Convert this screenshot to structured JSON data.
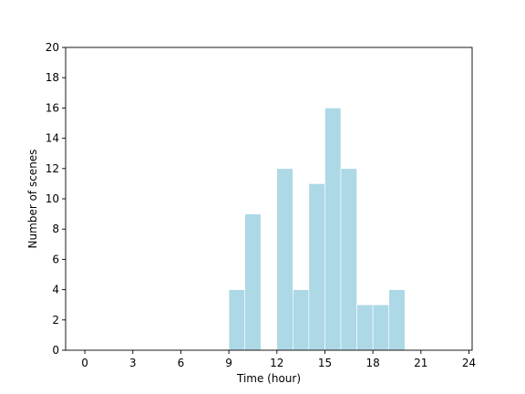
{
  "chart_data": {
    "type": "bar",
    "title": "",
    "xlabel": "Time (hour)",
    "ylabel": "Number of scenes",
    "xlim": [
      -1.2,
      24.2
    ],
    "ylim": [
      0,
      20
    ],
    "x_ticks": [
      0,
      3,
      6,
      9,
      12,
      15,
      18,
      21,
      24
    ],
    "y_ticks": [
      0,
      2,
      4,
      6,
      8,
      10,
      12,
      14,
      16,
      18,
      20
    ],
    "bin_width": 1,
    "bins": [
      {
        "start": 9,
        "count": 4
      },
      {
        "start": 10,
        "count": 9
      },
      {
        "start": 12,
        "count": 12
      },
      {
        "start": 13,
        "count": 4
      },
      {
        "start": 14,
        "count": 11
      },
      {
        "start": 15,
        "count": 16
      },
      {
        "start": 16,
        "count": 12
      },
      {
        "start": 17,
        "count": 3
      },
      {
        "start": 18,
        "count": 3
      },
      {
        "start": 19,
        "count": 4
      }
    ],
    "bar_color": "#add8e6",
    "grid": false,
    "legend": "none"
  }
}
